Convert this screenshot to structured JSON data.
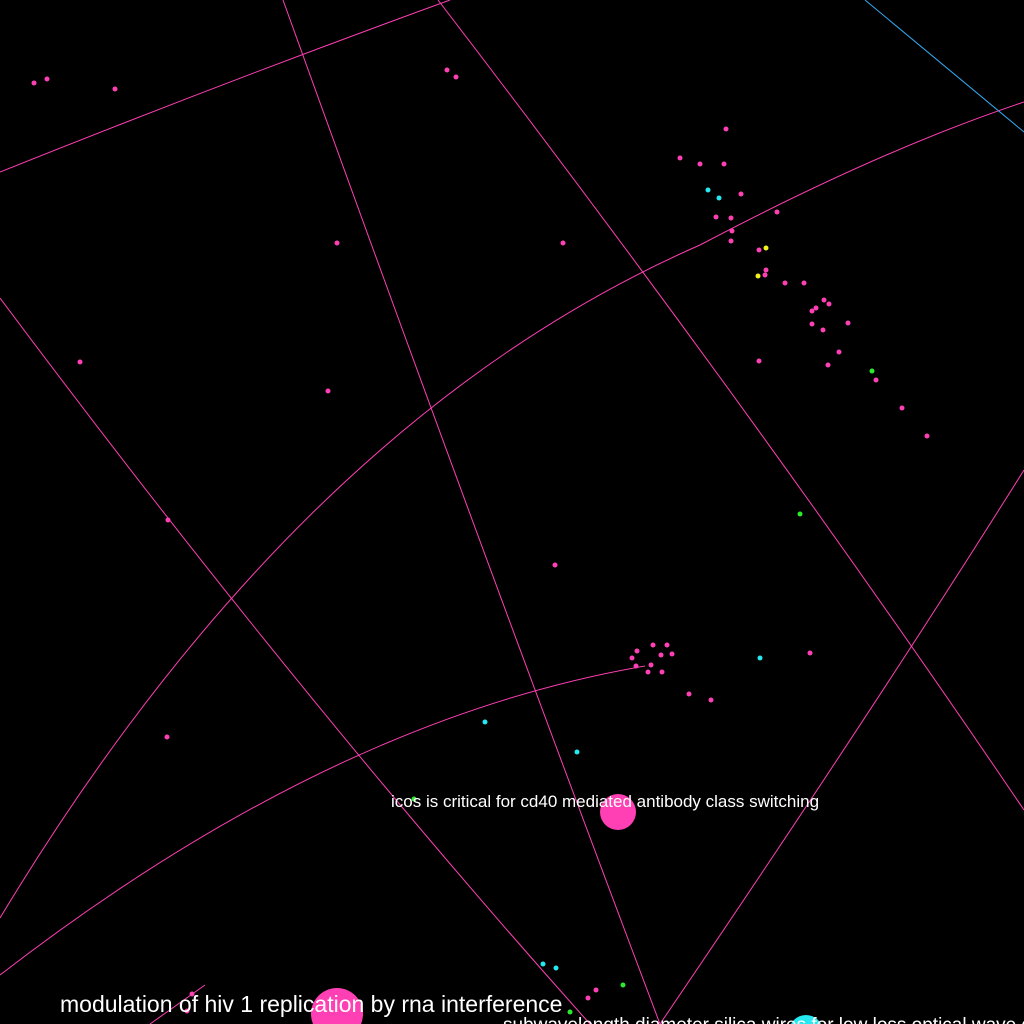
{
  "colors": {
    "background": "#000000",
    "magenta": "#ff3fb4",
    "cyan": "#25e8f0",
    "green": "#2ee82e",
    "yellow": "#f2f21c",
    "label": "#ffffff",
    "edge_pink": "#ff3fb4",
    "edge_blue": "#36a8f0"
  },
  "labels": {
    "icos": "icos is critical for cd40 mediated antibody class switching",
    "hiv": "modulation of hiv 1 replication by rna interference",
    "silica": "subwavelength diameter silica wires for low loss optical wave guiding"
  }
}
